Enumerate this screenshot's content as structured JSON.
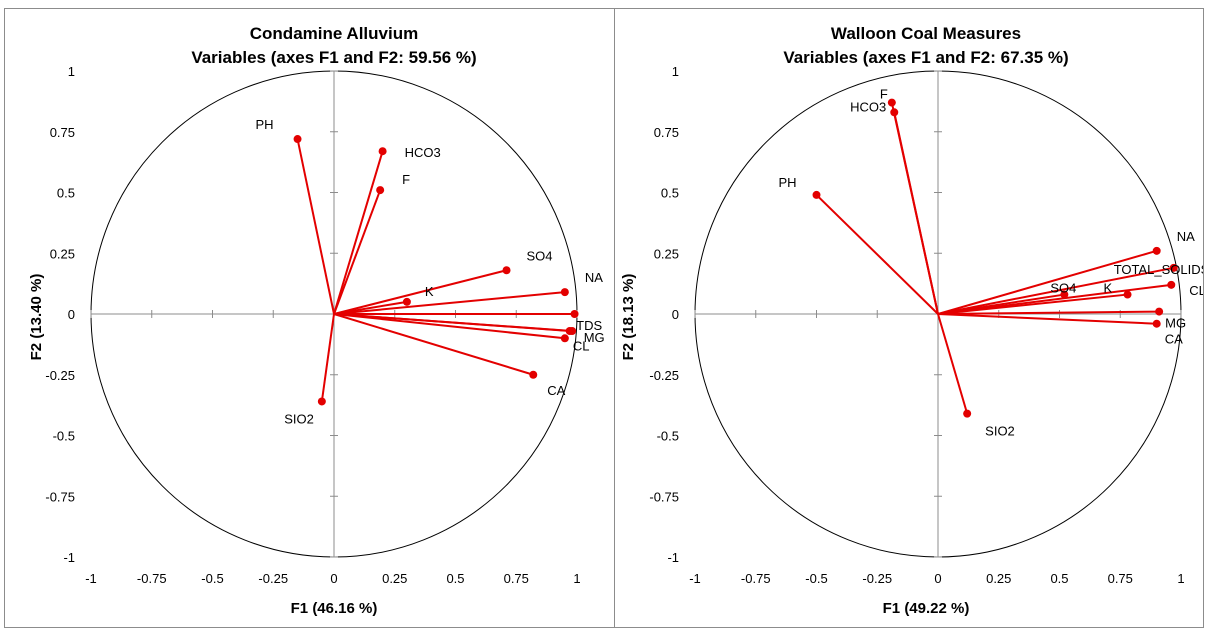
{
  "chart_data": [
    {
      "type": "scatter",
      "title": "Condamine Alluvium",
      "subtitle": "Variables (axes F1 and F2: 59.56 %)",
      "xlabel": "F1 (46.16 %)",
      "ylabel": "F2 (13.40 %)",
      "xlim": [
        -1,
        1
      ],
      "ylim": [
        -1,
        1
      ],
      "xticks": [
        "-1",
        "-0.75",
        "-0.5",
        "-0.25",
        "0",
        "0.25",
        "0.5",
        "0.75",
        "1"
      ],
      "yticks": [
        "1",
        "0.75",
        "0.5",
        "0.25",
        "0",
        "-0.25",
        "-0.5",
        "-0.75",
        "-1"
      ],
      "grid": false,
      "correlation_circle": true,
      "vector_color": "#e30000",
      "variables": [
        {
          "name": "PH",
          "x": -0.15,
          "y": 0.72
        },
        {
          "name": "HCO3",
          "x": 0.2,
          "y": 0.67
        },
        {
          "name": "F",
          "x": 0.19,
          "y": 0.51
        },
        {
          "name": "SO4",
          "x": 0.71,
          "y": 0.18
        },
        {
          "name": "NA",
          "x": 0.95,
          "y": 0.09
        },
        {
          "name": "K",
          "x": 0.3,
          "y": 0.05
        },
        {
          "name": "",
          "x": 0.99,
          "y": 0.0
        },
        {
          "name": "TDS",
          "x": 0.98,
          "y": -0.07
        },
        {
          "name": "CL",
          "x": 0.95,
          "y": -0.1
        },
        {
          "name": "MG",
          "x": 0.97,
          "y": -0.07
        },
        {
          "name": "CA",
          "x": 0.82,
          "y": -0.25
        },
        {
          "name": "SIO2",
          "x": -0.05,
          "y": -0.36
        }
      ]
    },
    {
      "type": "scatter",
      "title": "Walloon Coal Measures",
      "subtitle": "Variables (axes F1 and F2: 67.35 %)",
      "xlabel": "F1 (49.22 %)",
      "ylabel": "F2 (18.13 %)",
      "xlim": [
        -1,
        1
      ],
      "ylim": [
        -1,
        1
      ],
      "xticks": [
        "-1",
        "-0.75",
        "-0.5",
        "-0.25",
        "0",
        "0.25",
        "0.5",
        "0.75",
        "1"
      ],
      "yticks": [
        "1",
        "0.75",
        "0.5",
        "0.25",
        "0",
        "-0.25",
        "-0.5",
        "-0.75",
        "-1"
      ],
      "grid": false,
      "correlation_circle": true,
      "vector_color": "#e30000",
      "variables": [
        {
          "name": "F",
          "x": -0.19,
          "y": 0.87
        },
        {
          "name": "HCO3",
          "x": -0.18,
          "y": 0.83
        },
        {
          "name": "PH",
          "x": -0.5,
          "y": 0.49
        },
        {
          "name": "NA",
          "x": 0.9,
          "y": 0.26
        },
        {
          "name": "TOTAL_SOLIDS",
          "x": 0.97,
          "y": 0.19
        },
        {
          "name": "CL",
          "x": 0.96,
          "y": 0.12
        },
        {
          "name": "SO4",
          "x": 0.52,
          "y": 0.08
        },
        {
          "name": "K",
          "x": 0.78,
          "y": 0.08
        },
        {
          "name": "MG",
          "x": 0.91,
          "y": 0.01
        },
        {
          "name": "CA",
          "x": 0.9,
          "y": -0.04
        },
        {
          "name": "SIO2",
          "x": 0.12,
          "y": -0.41
        }
      ]
    }
  ]
}
